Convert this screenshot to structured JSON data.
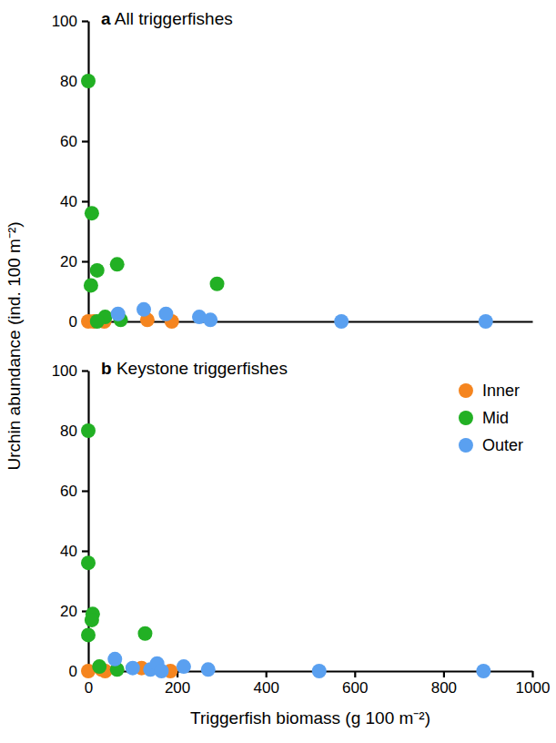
{
  "chart_data": [
    {
      "type": "scatter",
      "panel_label": "a",
      "title": "All triggerfishes",
      "ylabel": "Urchin abundance (ind. 100 m⁻²)",
      "xlim": [
        0,
        1000
      ],
      "xticks": [],
      "ylim": [
        0,
        100
      ],
      "yticks": [
        0,
        20,
        40,
        60,
        80,
        100
      ],
      "tick_labels": "y",
      "marker": "circle",
      "series": [
        {
          "name": "Inner",
          "color": "#f5851f",
          "x": [
            0,
            12,
            36,
            133,
            188
          ],
          "values": [
            0,
            0,
            0,
            0.5,
            0
          ]
        },
        {
          "name": "Mid",
          "color": "#22b024",
          "x": [
            0,
            8,
            20,
            6,
            65,
            290,
            38,
            73,
            20
          ],
          "values": [
            80,
            36,
            17,
            12,
            19,
            12.5,
            1.5,
            0.5,
            0
          ]
        },
        {
          "name": "Outer",
          "color": "#5aa0f0",
          "x": [
            67,
            125,
            175,
            250,
            275,
            570,
            895
          ],
          "values": [
            2.5,
            4,
            2.5,
            1.5,
            0.5,
            0,
            0
          ]
        }
      ]
    },
    {
      "type": "scatter",
      "panel_label": "b",
      "title": "Keystone triggerfishes",
      "xlabel": "Triggerfish biomass (g 100 m⁻²)",
      "xlim": [
        0,
        1000
      ],
      "xticks": [
        0,
        200,
        400,
        600,
        800,
        1000
      ],
      "ylim": [
        0,
        100
      ],
      "yticks": [
        0,
        20,
        40,
        60,
        80,
        100
      ],
      "legend": "upper right",
      "marker": "circle",
      "series": [
        {
          "name": "Inner",
          "color": "#f5851f",
          "x": [
            0,
            38,
            30,
            120,
            185
          ],
          "values": [
            0,
            0,
            0.5,
            1,
            0
          ]
        },
        {
          "name": "Mid",
          "color": "#22b024",
          "x": [
            0,
            0,
            10,
            8,
            0,
            25,
            65,
            128
          ],
          "values": [
            80,
            36,
            19,
            17,
            12,
            1.5,
            0.5,
            12.5
          ]
        },
        {
          "name": "Outer",
          "color": "#5aa0f0",
          "x": [
            60,
            100,
            140,
            155,
            165,
            215,
            270,
            520,
            890
          ],
          "values": [
            4,
            1,
            0.5,
            2.5,
            0,
            1.5,
            0.5,
            0,
            0
          ]
        }
      ]
    }
  ]
}
